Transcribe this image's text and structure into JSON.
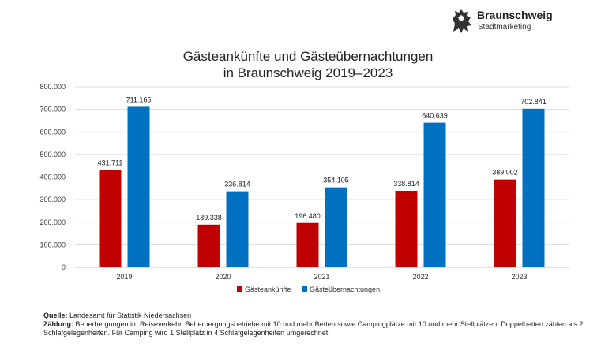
{
  "logo": {
    "brand": "Braunschweig",
    "sub": "Stadtmarketing",
    "icon": "lion-icon"
  },
  "chart_data": {
    "type": "bar",
    "title": "Gästeankünfte und Gästeübernachtungen",
    "subtitle": "in Braunschweig 2019–2023",
    "categories": [
      "2019",
      "2020",
      "2021",
      "2022",
      "2023"
    ],
    "series": [
      {
        "name": "Gästeankünfte",
        "color": "#c00000",
        "values": [
          431711,
          189338,
          196480,
          338814,
          389002
        ],
        "labels": [
          "431.711",
          "189.338",
          "196.480",
          "338.814",
          "389.002"
        ]
      },
      {
        "name": "Gästeübernachtungen",
        "color": "#0070c0",
        "values": [
          711165,
          336814,
          354105,
          640639,
          702841
        ],
        "labels": [
          "711.165",
          "336.814",
          "354.105",
          "640.639",
          "702.841"
        ]
      }
    ],
    "ylim": [
      0,
      800000
    ],
    "yticks": [
      0,
      100000,
      200000,
      300000,
      400000,
      500000,
      600000,
      700000,
      800000
    ],
    "ytick_labels": [
      "0",
      "100.000",
      "200.000",
      "300.000",
      "400.000",
      "500.000",
      "600.000",
      "700.000",
      "800.000"
    ],
    "grid": true,
    "legend_position": "bottom"
  },
  "footer": {
    "source_label": "Quelle:",
    "source_text": " Landesamt für Statistik Niedersachsen",
    "count_label": "Zählung:",
    "count_text": " Beherbergungen im Reiseverkehr. Beherbergungsbetriebe mit 10 und mehr Betten sowie Campingplätze mit 10 und mehr Stellplätzen. Doppelbetten zählen als 2 Schlafgelegenheiten. Für Camping wird 1 Stellplatz in 4 Schlafgelegenheiten umgerechnet."
  }
}
